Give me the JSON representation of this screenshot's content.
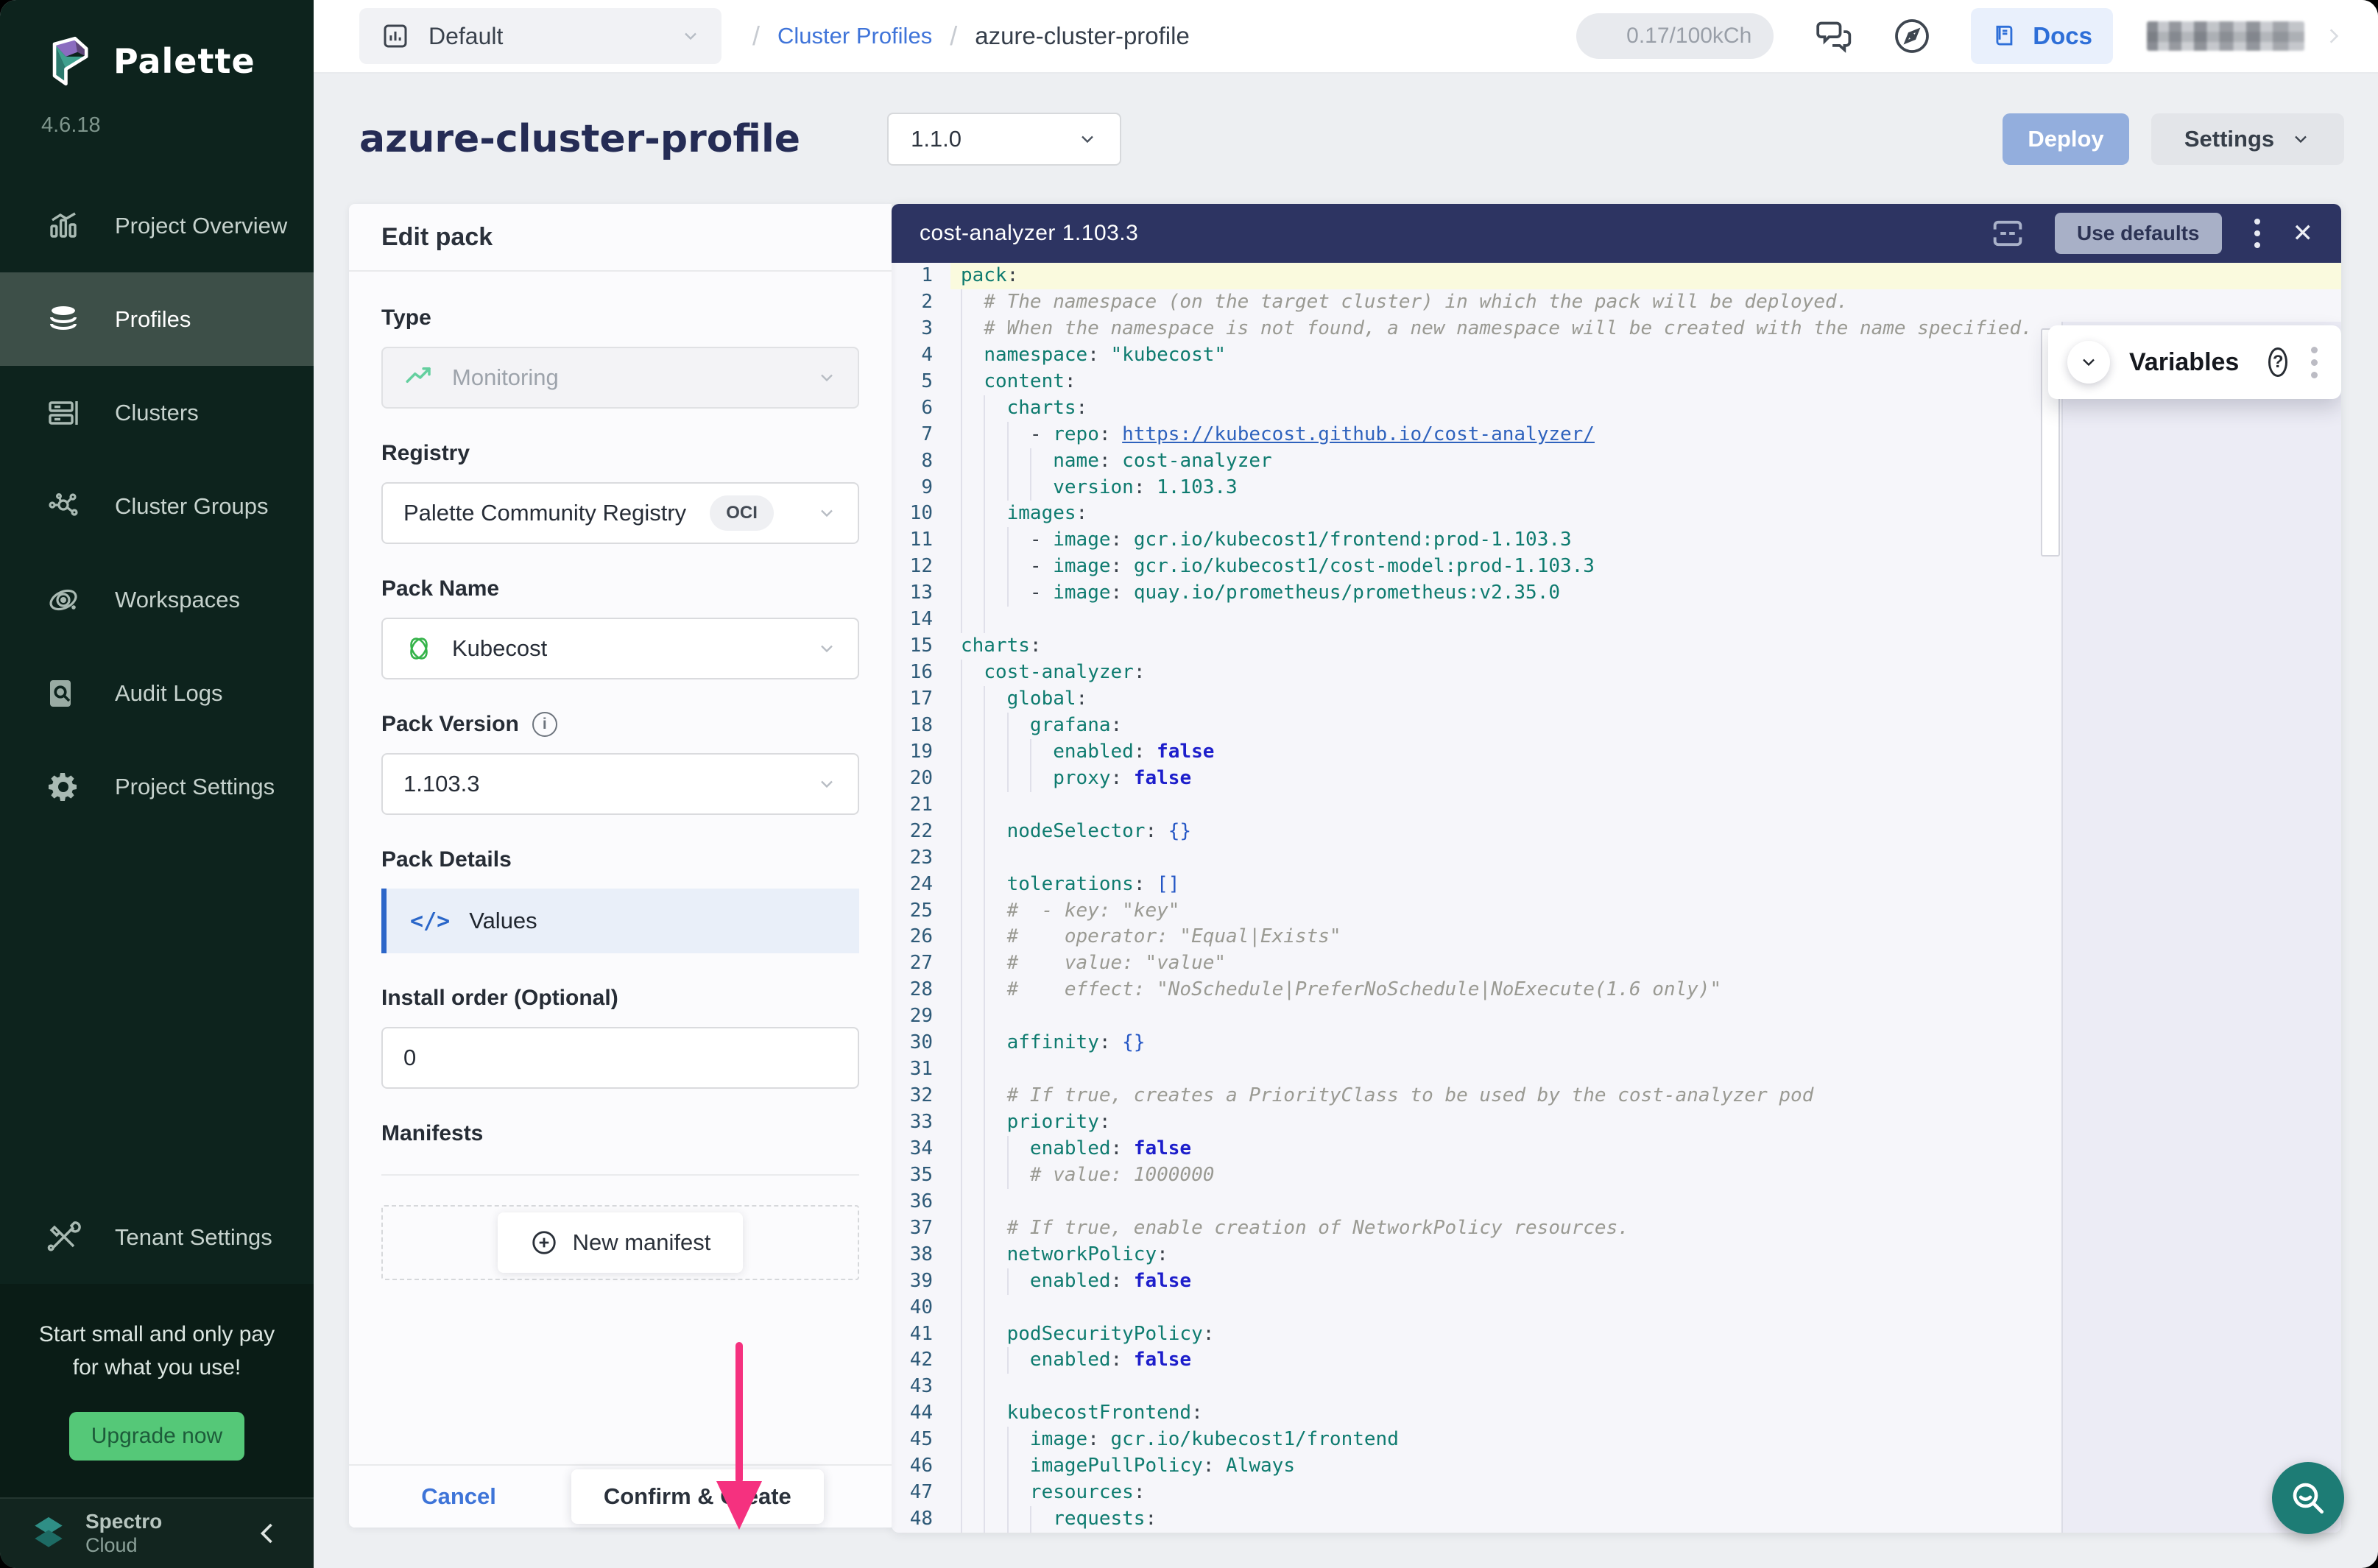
{
  "app": {
    "brand": "Palette",
    "version": "4.6.18"
  },
  "colors": {
    "sidebar_bg": "#0d231d",
    "accent_blue": "#2e6fd8",
    "editor_header": "#2d3462",
    "annotation_pink": "#f5317f",
    "upgrade_green": "#55c878",
    "fab_teal": "#1d7c75",
    "deploy_blue": "#93aedd"
  },
  "sidebar": {
    "items": [
      {
        "label": "Project Overview",
        "icon": "bar-chart",
        "active": false
      },
      {
        "label": "Profiles",
        "icon": "layers",
        "active": true
      },
      {
        "label": "Clusters",
        "icon": "server",
        "active": false
      },
      {
        "label": "Cluster Groups",
        "icon": "network",
        "active": false
      },
      {
        "label": "Workspaces",
        "icon": "orbit",
        "active": false
      },
      {
        "label": "Audit Logs",
        "icon": "audit",
        "active": false
      },
      {
        "label": "Project Settings",
        "icon": "gear",
        "active": false
      }
    ],
    "tenant": {
      "label": "Tenant Settings",
      "icon": "tools"
    },
    "promo": {
      "line1": "Start small and only pay",
      "line2": "for what you use!",
      "cta": "Upgrade now"
    },
    "footer": {
      "brand_top": "Spectro",
      "brand_bottom": "Cloud"
    }
  },
  "topbar": {
    "project": "Default",
    "breadcrumb": {
      "link": "Cluster Profiles",
      "current": "azure-cluster-profile"
    },
    "usage": "0.17/100kCh",
    "docs": "Docs"
  },
  "page": {
    "title": "azure-cluster-profile",
    "version": "1.1.0",
    "deploy": "Deploy",
    "settings": "Settings"
  },
  "edit_pack": {
    "title": "Edit pack",
    "type_label": "Type",
    "type_value": "Monitoring",
    "registry_label": "Registry",
    "registry_value": "Palette Community Registry",
    "registry_badge": "OCI",
    "name_label": "Pack Name",
    "name_value": "Kubecost",
    "version_label": "Pack Version",
    "version_value": "1.103.3",
    "details_label": "Pack Details",
    "details_item": "Values",
    "details_icon_text": "</>",
    "install_label": "Install order (Optional)",
    "install_value": "0",
    "manifests_label": "Manifests",
    "new_manifest": "New manifest",
    "cancel": "Cancel",
    "confirm": "Confirm & Create"
  },
  "editor": {
    "title": "cost-analyzer 1.103.3",
    "use_defaults": "Use defaults",
    "variables_title": "Variables",
    "lines": [
      {
        "n": 1,
        "g": 0,
        "hl": true,
        "seg": [
          [
            "k",
            "pack"
          ],
          [
            "p",
            ":"
          ]
        ]
      },
      {
        "n": 2,
        "g": 1,
        "seg": [
          [
            "c",
            "  # The namespace (on the target cluster) in which the pack will be deployed."
          ]
        ]
      },
      {
        "n": 3,
        "g": 1,
        "seg": [
          [
            "c",
            "  # When the namespace is not found, a new namespace will be created with the name specified."
          ]
        ]
      },
      {
        "n": 4,
        "g": 1,
        "seg": [
          [
            "p",
            "  "
          ],
          [
            "k",
            "namespace"
          ],
          [
            "p",
            ": "
          ],
          [
            "s",
            "\"kubecost\""
          ]
        ]
      },
      {
        "n": 5,
        "g": 1,
        "seg": [
          [
            "p",
            "  "
          ],
          [
            "k",
            "content"
          ],
          [
            "p",
            ":"
          ]
        ]
      },
      {
        "n": 6,
        "g": 2,
        "seg": [
          [
            "p",
            "    "
          ],
          [
            "k",
            "charts"
          ],
          [
            "p",
            ":"
          ]
        ]
      },
      {
        "n": 7,
        "g": 3,
        "seg": [
          [
            "p",
            "      - "
          ],
          [
            "k",
            "repo"
          ],
          [
            "p",
            ": "
          ],
          [
            "u",
            "https://kubecost.github.io/cost-analyzer/"
          ]
        ]
      },
      {
        "n": 8,
        "g": 4,
        "seg": [
          [
            "p",
            "        "
          ],
          [
            "k",
            "name"
          ],
          [
            "p",
            ": "
          ],
          [
            "s",
            "cost-analyzer"
          ]
        ]
      },
      {
        "n": 9,
        "g": 4,
        "seg": [
          [
            "p",
            "        "
          ],
          [
            "k",
            "version"
          ],
          [
            "p",
            ": "
          ],
          [
            "s",
            "1.103.3"
          ]
        ]
      },
      {
        "n": 10,
        "g": 2,
        "seg": [
          [
            "p",
            "    "
          ],
          [
            "k",
            "images"
          ],
          [
            "p",
            ":"
          ]
        ]
      },
      {
        "n": 11,
        "g": 3,
        "seg": [
          [
            "p",
            "      - "
          ],
          [
            "k",
            "image"
          ],
          [
            "p",
            ": "
          ],
          [
            "s",
            "gcr.io/kubecost1/frontend:prod-1.103.3"
          ]
        ]
      },
      {
        "n": 12,
        "g": 3,
        "seg": [
          [
            "p",
            "      - "
          ],
          [
            "k",
            "image"
          ],
          [
            "p",
            ": "
          ],
          [
            "s",
            "gcr.io/kubecost1/cost-model:prod-1.103.3"
          ]
        ]
      },
      {
        "n": 13,
        "g": 3,
        "seg": [
          [
            "p",
            "      - "
          ],
          [
            "k",
            "image"
          ],
          [
            "p",
            ": "
          ],
          [
            "s",
            "quay.io/prometheus/prometheus:v2.35.0"
          ]
        ]
      },
      {
        "n": 14,
        "g": 2,
        "seg": []
      },
      {
        "n": 15,
        "g": 0,
        "seg": [
          [
            "k",
            "charts"
          ],
          [
            "p",
            ":"
          ]
        ]
      },
      {
        "n": 16,
        "g": 1,
        "seg": [
          [
            "p",
            "  "
          ],
          [
            "k",
            "cost-analyzer"
          ],
          [
            "p",
            ":"
          ]
        ]
      },
      {
        "n": 17,
        "g": 2,
        "seg": [
          [
            "p",
            "    "
          ],
          [
            "k",
            "global"
          ],
          [
            "p",
            ":"
          ]
        ]
      },
      {
        "n": 18,
        "g": 3,
        "seg": [
          [
            "p",
            "      "
          ],
          [
            "k",
            "grafana"
          ],
          [
            "p",
            ":"
          ]
        ]
      },
      {
        "n": 19,
        "g": 4,
        "seg": [
          [
            "p",
            "        "
          ],
          [
            "k",
            "enabled"
          ],
          [
            "p",
            ": "
          ],
          [
            "b",
            "false"
          ]
        ]
      },
      {
        "n": 20,
        "g": 4,
        "seg": [
          [
            "p",
            "        "
          ],
          [
            "k",
            "proxy"
          ],
          [
            "p",
            ": "
          ],
          [
            "b",
            "false"
          ]
        ]
      },
      {
        "n": 21,
        "g": 2,
        "seg": []
      },
      {
        "n": 22,
        "g": 2,
        "seg": [
          [
            "p",
            "    "
          ],
          [
            "k",
            "nodeSelector"
          ],
          [
            "p",
            ": "
          ],
          [
            "br",
            "{}"
          ]
        ]
      },
      {
        "n": 23,
        "g": 2,
        "seg": []
      },
      {
        "n": 24,
        "g": 2,
        "seg": [
          [
            "p",
            "    "
          ],
          [
            "k",
            "tolerations"
          ],
          [
            "p",
            ": "
          ],
          [
            "br",
            "[]"
          ]
        ]
      },
      {
        "n": 25,
        "g": 2,
        "seg": [
          [
            "c",
            "    #  - key: \"key\""
          ]
        ]
      },
      {
        "n": 26,
        "g": 2,
        "seg": [
          [
            "c",
            "    #    operator: \"Equal|Exists\""
          ]
        ]
      },
      {
        "n": 27,
        "g": 2,
        "seg": [
          [
            "c",
            "    #    value: \"value\""
          ]
        ]
      },
      {
        "n": 28,
        "g": 2,
        "seg": [
          [
            "c",
            "    #    effect: \"NoSchedule|PreferNoSchedule|NoExecute(1.6 only)\""
          ]
        ]
      },
      {
        "n": 29,
        "g": 2,
        "seg": []
      },
      {
        "n": 30,
        "g": 2,
        "seg": [
          [
            "p",
            "    "
          ],
          [
            "k",
            "affinity"
          ],
          [
            "p",
            ": "
          ],
          [
            "br",
            "{}"
          ]
        ]
      },
      {
        "n": 31,
        "g": 2,
        "seg": []
      },
      {
        "n": 32,
        "g": 2,
        "seg": [
          [
            "c",
            "    # If true, creates a PriorityClass to be used by the cost-analyzer pod"
          ]
        ]
      },
      {
        "n": 33,
        "g": 2,
        "seg": [
          [
            "p",
            "    "
          ],
          [
            "k",
            "priority"
          ],
          [
            "p",
            ":"
          ]
        ]
      },
      {
        "n": 34,
        "g": 3,
        "seg": [
          [
            "p",
            "      "
          ],
          [
            "k",
            "enabled"
          ],
          [
            "p",
            ": "
          ],
          [
            "b",
            "false"
          ]
        ]
      },
      {
        "n": 35,
        "g": 3,
        "seg": [
          [
            "c",
            "      # value: 1000000"
          ]
        ]
      },
      {
        "n": 36,
        "g": 2,
        "seg": []
      },
      {
        "n": 37,
        "g": 2,
        "seg": [
          [
            "c",
            "    # If true, enable creation of NetworkPolicy resources."
          ]
        ]
      },
      {
        "n": 38,
        "g": 2,
        "seg": [
          [
            "p",
            "    "
          ],
          [
            "k",
            "networkPolicy"
          ],
          [
            "p",
            ":"
          ]
        ]
      },
      {
        "n": 39,
        "g": 3,
        "seg": [
          [
            "p",
            "      "
          ],
          [
            "k",
            "enabled"
          ],
          [
            "p",
            ": "
          ],
          [
            "b",
            "false"
          ]
        ]
      },
      {
        "n": 40,
        "g": 2,
        "seg": []
      },
      {
        "n": 41,
        "g": 2,
        "seg": [
          [
            "p",
            "    "
          ],
          [
            "k",
            "podSecurityPolicy"
          ],
          [
            "p",
            ":"
          ]
        ]
      },
      {
        "n": 42,
        "g": 3,
        "seg": [
          [
            "p",
            "      "
          ],
          [
            "k",
            "enabled"
          ],
          [
            "p",
            ": "
          ],
          [
            "b",
            "false"
          ]
        ]
      },
      {
        "n": 43,
        "g": 2,
        "seg": []
      },
      {
        "n": 44,
        "g": 2,
        "seg": [
          [
            "p",
            "    "
          ],
          [
            "k",
            "kubecostFrontend"
          ],
          [
            "p",
            ":"
          ]
        ]
      },
      {
        "n": 45,
        "g": 3,
        "seg": [
          [
            "p",
            "      "
          ],
          [
            "k",
            "image"
          ],
          [
            "p",
            ": "
          ],
          [
            "s",
            "gcr.io/kubecost1/frontend"
          ]
        ]
      },
      {
        "n": 46,
        "g": 3,
        "seg": [
          [
            "p",
            "      "
          ],
          [
            "k",
            "imagePullPolicy"
          ],
          [
            "p",
            ": "
          ],
          [
            "s",
            "Always"
          ]
        ]
      },
      {
        "n": 47,
        "g": 3,
        "seg": [
          [
            "p",
            "      "
          ],
          [
            "k",
            "resources"
          ],
          [
            "p",
            ":"
          ]
        ]
      },
      {
        "n": 48,
        "g": 4,
        "seg": [
          [
            "p",
            "        "
          ],
          [
            "k",
            "requests"
          ],
          [
            "p",
            ":"
          ]
        ]
      }
    ]
  }
}
